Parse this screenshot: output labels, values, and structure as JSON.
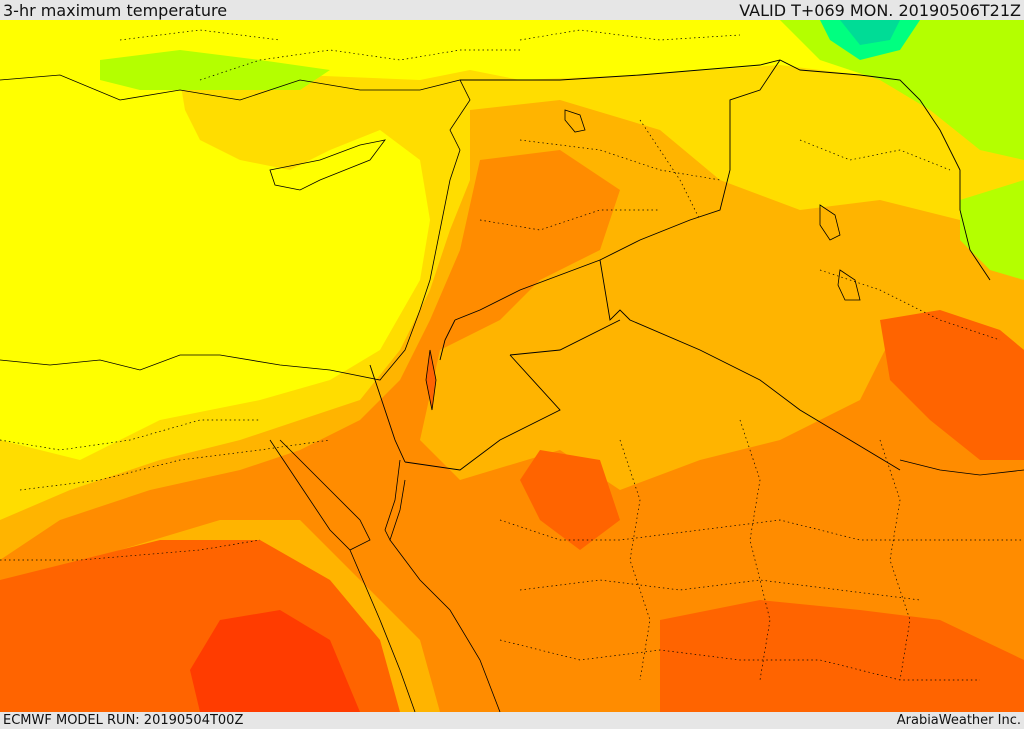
{
  "header": {
    "title": "3-hr maximum temperature",
    "valid": "VALID T+069 MON. 20190506T21Z"
  },
  "footer": {
    "model_run": "ECMWF MODEL RUN: 20190504T00Z",
    "credit": "ArabiaWeather Inc."
  },
  "colors": {
    "yellow": "#ffff00",
    "yellow_orange": "#ffdd00",
    "light_orange": "#ffb400",
    "orange": "#ff8c00",
    "dark_orange": "#ff6400",
    "red_orange": "#ff3c00",
    "lime": "#b4ff00",
    "green": "#00ff80",
    "teal": "#00dc96"
  }
}
